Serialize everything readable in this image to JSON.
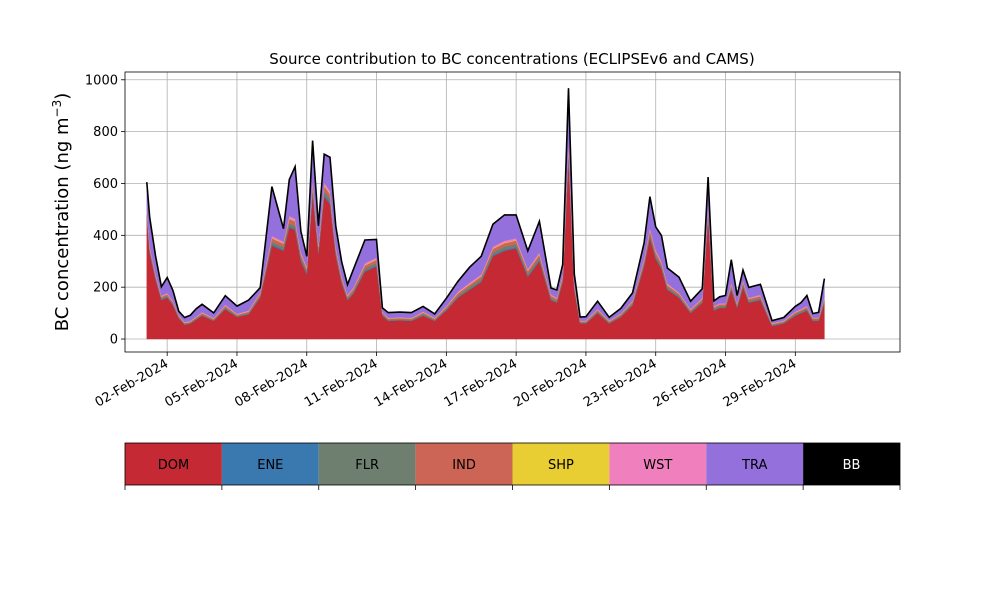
{
  "chart_data": {
    "type": "area",
    "stacked": true,
    "title": "Source contribution to BC concentrations (ECLIPSEv6 and CAMS)",
    "xlabel": "",
    "ylabel": "BC concentration (ng m",
    "ylabel_unit_sup": "−3",
    "ylabel_close": ")",
    "ylim": [
      -50,
      1030
    ],
    "xlim": [
      "2024-01-31T04:30",
      "2024-03-04T12:00"
    ],
    "grid": true,
    "x_ticks": [
      "2024-02-02",
      "2024-02-05",
      "2024-02-08",
      "2024-02-11",
      "2024-02-14",
      "2024-02-17",
      "2024-02-20",
      "2024-02-23",
      "2024-02-26",
      "2024-02-29"
    ],
    "x_tick_labels": [
      "02-Feb-2024",
      "05-Feb-2024",
      "08-Feb-2024",
      "11-Feb-2024",
      "14-Feb-2024",
      "17-Feb-2024",
      "20-Feb-2024",
      "23-Feb-2024",
      "26-Feb-2024",
      "29-Feb-2024"
    ],
    "y_ticks": [
      0,
      200,
      400,
      600,
      800,
      1000
    ],
    "y_tick_labels": [
      "0",
      "200",
      "400",
      "600",
      "800",
      "1000"
    ],
    "x": [
      "2024-02-01T03:00",
      "2024-02-01T06:00",
      "2024-02-01T12:00",
      "2024-02-01T18:00",
      "2024-02-02T00:00",
      "2024-02-02T06:00",
      "2024-02-02T12:00",
      "2024-02-02T18:00",
      "2024-02-03T00:00",
      "2024-02-03T06:00",
      "2024-02-03T12:00",
      "2024-02-04T00:00",
      "2024-02-04T12:00",
      "2024-02-05T00:00",
      "2024-02-05T12:00",
      "2024-02-06T00:00",
      "2024-02-06T12:00",
      "2024-02-07T00:00",
      "2024-02-07T06:00",
      "2024-02-07T12:00",
      "2024-02-07T18:00",
      "2024-02-08T00:00",
      "2024-02-08T06:00",
      "2024-02-08T12:00",
      "2024-02-08T18:00",
      "2024-02-09T00:00",
      "2024-02-09T06:00",
      "2024-02-09T12:00",
      "2024-02-09T18:00",
      "2024-02-10T00:00",
      "2024-02-10T12:00",
      "2024-02-11T00:00",
      "2024-02-11T06:00",
      "2024-02-11T12:00",
      "2024-02-12T00:00",
      "2024-02-12T12:00",
      "2024-02-13T00:00",
      "2024-02-13T12:00",
      "2024-02-14T00:00",
      "2024-02-14T12:00",
      "2024-02-15T00:00",
      "2024-02-15T12:00",
      "2024-02-16T00:00",
      "2024-02-16T12:00",
      "2024-02-17T00:00",
      "2024-02-17T12:00",
      "2024-02-18T00:00",
      "2024-02-18T12:00",
      "2024-02-18T18:00",
      "2024-02-19T00:00",
      "2024-02-19T06:00",
      "2024-02-19T12:00",
      "2024-02-19T18:00",
      "2024-02-20T00:00",
      "2024-02-20T12:00",
      "2024-02-21T00:00",
      "2024-02-21T12:00",
      "2024-02-22T00:00",
      "2024-02-22T12:00",
      "2024-02-22T18:00",
      "2024-02-23T00:00",
      "2024-02-23T06:00",
      "2024-02-23T12:00",
      "2024-02-24T00:00",
      "2024-02-24T12:00",
      "2024-02-25T00:00",
      "2024-02-25T06:00",
      "2024-02-25T12:00",
      "2024-02-25T18:00",
      "2024-02-26T00:00",
      "2024-02-26T06:00",
      "2024-02-26T12:00",
      "2024-02-26T18:00",
      "2024-02-27T00:00",
      "2024-02-27T12:00",
      "2024-02-28T00:00",
      "2024-02-28T12:00",
      "2024-02-29T00:00",
      "2024-02-29T06:00",
      "2024-02-29T12:00",
      "2024-02-29T18:00",
      "2024-03-01T00:00",
      "2024-03-01T06:00"
    ],
    "series": [
      {
        "name": "DOM",
        "color": "#c52a34",
        "values": [
          470,
          330,
          230,
          150,
          160,
          130,
          80,
          55,
          60,
          75,
          90,
          70,
          115,
          85,
          95,
          160,
          360,
          340,
          430,
          420,
          300,
          250,
          560,
          330,
          550,
          520,
          320,
          215,
          150,
          175,
          260,
          280,
          90,
          70,
          72,
          70,
          90,
          70,
          110,
          160,
          190,
          220,
          320,
          340,
          350,
          240,
          300,
          150,
          140,
          220,
          700,
          190,
          60,
          60,
          100,
          60,
          85,
          130,
          280,
          390,
          310,
          270,
          190,
          160,
          100,
          140,
          470,
          110,
          120,
          120,
          190,
          120,
          200,
          140,
          150,
          50,
          60,
          90,
          100,
          110,
          70,
          70,
          140
        ]
      },
      {
        "name": "ENE",
        "color": "#3a78b0",
        "values": [
          5,
          4,
          3,
          2,
          2,
          2,
          1,
          1,
          1,
          1,
          1,
          1,
          2,
          1,
          2,
          2,
          5,
          5,
          6,
          6,
          5,
          4,
          7,
          5,
          7,
          7,
          5,
          3,
          2,
          3,
          4,
          4,
          2,
          1,
          1,
          1,
          2,
          1,
          2,
          2,
          3,
          3,
          4,
          5,
          5,
          4,
          4,
          2,
          2,
          3,
          8,
          3,
          1,
          1,
          2,
          1,
          1,
          2,
          4,
          5,
          4,
          4,
          3,
          2,
          2,
          2,
          6,
          2,
          2,
          2,
          3,
          2,
          3,
          2,
          2,
          1,
          1,
          2,
          2,
          2,
          1,
          1,
          2
        ]
      },
      {
        "name": "FLR",
        "color": "#6f7f6f",
        "values": [
          10,
          8,
          6,
          5,
          5,
          5,
          4,
          3,
          3,
          4,
          4,
          3,
          5,
          4,
          4,
          6,
          10,
          10,
          12,
          12,
          10,
          8,
          15,
          10,
          14,
          14,
          10,
          8,
          6,
          7,
          9,
          10,
          5,
          4,
          4,
          4,
          5,
          4,
          5,
          7,
          8,
          9,
          11,
          11,
          11,
          9,
          10,
          7,
          6,
          8,
          18,
          7,
          4,
          4,
          5,
          4,
          5,
          6,
          9,
          11,
          9,
          8,
          7,
          6,
          5,
          6,
          12,
          5,
          6,
          6,
          8,
          6,
          8,
          6,
          7,
          4,
          4,
          5,
          5,
          6,
          5,
          5,
          8
        ]
      },
      {
        "name": "IND",
        "color": "#cc6555",
        "values": [
          12,
          10,
          8,
          6,
          6,
          6,
          4,
          3,
          3,
          4,
          5,
          4,
          6,
          4,
          5,
          8,
          14,
          13,
          16,
          16,
          12,
          10,
          20,
          12,
          20,
          18,
          12,
          9,
          7,
          8,
          11,
          12,
          5,
          4,
          4,
          4,
          5,
          4,
          6,
          8,
          9,
          10,
          13,
          14,
          14,
          10,
          12,
          8,
          7,
          10,
          25,
          8,
          3,
          3,
          5,
          3,
          4,
          6,
          11,
          14,
          12,
          10,
          8,
          7,
          5,
          7,
          16,
          6,
          6,
          6,
          9,
          6,
          9,
          7,
          7,
          3,
          3,
          5,
          5,
          6,
          4,
          4,
          8
        ]
      },
      {
        "name": "SHP",
        "color": "#e8ce32",
        "values": [
          2,
          2,
          1,
          1,
          1,
          1,
          1,
          1,
          1,
          1,
          1,
          1,
          1,
          1,
          1,
          1,
          2,
          2,
          3,
          3,
          2,
          2,
          3,
          2,
          3,
          3,
          2,
          2,
          1,
          1,
          2,
          2,
          1,
          1,
          1,
          1,
          1,
          1,
          1,
          2,
          2,
          2,
          2,
          2,
          2,
          2,
          2,
          1,
          1,
          2,
          4,
          2,
          1,
          1,
          1,
          1,
          1,
          1,
          2,
          2,
          2,
          2,
          2,
          1,
          1,
          1,
          3,
          1,
          1,
          1,
          2,
          1,
          2,
          1,
          1,
          1,
          1,
          1,
          1,
          1,
          1,
          1,
          1
        ]
      },
      {
        "name": "WST",
        "color": "#f07fbd",
        "values": [
          6,
          5,
          4,
          3,
          3,
          3,
          2,
          2,
          2,
          2,
          3,
          2,
          3,
          2,
          3,
          4,
          7,
          6,
          8,
          8,
          6,
          5,
          10,
          6,
          9,
          9,
          6,
          5,
          4,
          4,
          6,
          6,
          3,
          2,
          2,
          2,
          3,
          2,
          3,
          4,
          5,
          5,
          6,
          7,
          7,
          5,
          6,
          4,
          3,
          5,
          12,
          4,
          2,
          2,
          3,
          2,
          2,
          3,
          5,
          7,
          6,
          5,
          4,
          3,
          3,
          3,
          8,
          3,
          3,
          3,
          4,
          3,
          4,
          3,
          4,
          2,
          2,
          3,
          3,
          3,
          2,
          2,
          4
        ]
      },
      {
        "name": "TRA",
        "color": "#9370db",
        "values": [
          100,
          110,
          70,
          35,
          60,
          40,
          15,
          18,
          22,
          30,
          30,
          20,
          35,
          30,
          40,
          17,
          190,
          50,
          140,
          200,
          80,
          40,
          150,
          72,
          110,
          130,
          80,
          55,
          40,
          70,
          90,
          70,
          14,
          20,
          20,
          20,
          20,
          15,
          30,
          40,
          60,
          70,
          87,
          100,
          90,
          70,
          120,
          25,
          30,
          40,
          200,
          37,
          14,
          15,
          30,
          13,
          20,
          30,
          60,
          120,
          90,
          100,
          60,
          60,
          30,
          35,
          110,
          20,
          25,
          30,
          90,
          30,
          40,
          40,
          40,
          10,
          12,
          20,
          25,
          40,
          15,
          20,
          70
        ]
      },
      {
        "name": "BB",
        "color": "#000000",
        "values": [
          0,
          0,
          0,
          0,
          0,
          0,
          0,
          0,
          0,
          0,
          0,
          0,
          0,
          0,
          0,
          0,
          0,
          0,
          0,
          0,
          0,
          0,
          0,
          0,
          0,
          0,
          0,
          0,
          0,
          0,
          0,
          0,
          0,
          0,
          0,
          0,
          0,
          0,
          0,
          0,
          0,
          0,
          0,
          0,
          0,
          0,
          0,
          0,
          0,
          0,
          0,
          0,
          0,
          0,
          0,
          0,
          0,
          0,
          0,
          0,
          0,
          0,
          0,
          0,
          0,
          0,
          0,
          0,
          0,
          0,
          0,
          0,
          0,
          0,
          0,
          0,
          0,
          0,
          0,
          0,
          0,
          0,
          0
        ]
      }
    ],
    "legend_location": "below"
  },
  "legend": {
    "items": [
      {
        "label": "DOM",
        "color": "#c52a34",
        "text_color": "#000000"
      },
      {
        "label": "ENE",
        "color": "#3a78b0",
        "text_color": "#000000"
      },
      {
        "label": "FLR",
        "color": "#6f7f6f",
        "text_color": "#000000"
      },
      {
        "label": "IND",
        "color": "#cc6555",
        "text_color": "#000000"
      },
      {
        "label": "SHP",
        "color": "#e8ce32",
        "text_color": "#000000"
      },
      {
        "label": "WST",
        "color": "#f07fbd",
        "text_color": "#000000"
      },
      {
        "label": "TRA",
        "color": "#9370db",
        "text_color": "#000000"
      },
      {
        "label": "BB",
        "color": "#000000",
        "text_color": "#ffffff"
      }
    ]
  }
}
